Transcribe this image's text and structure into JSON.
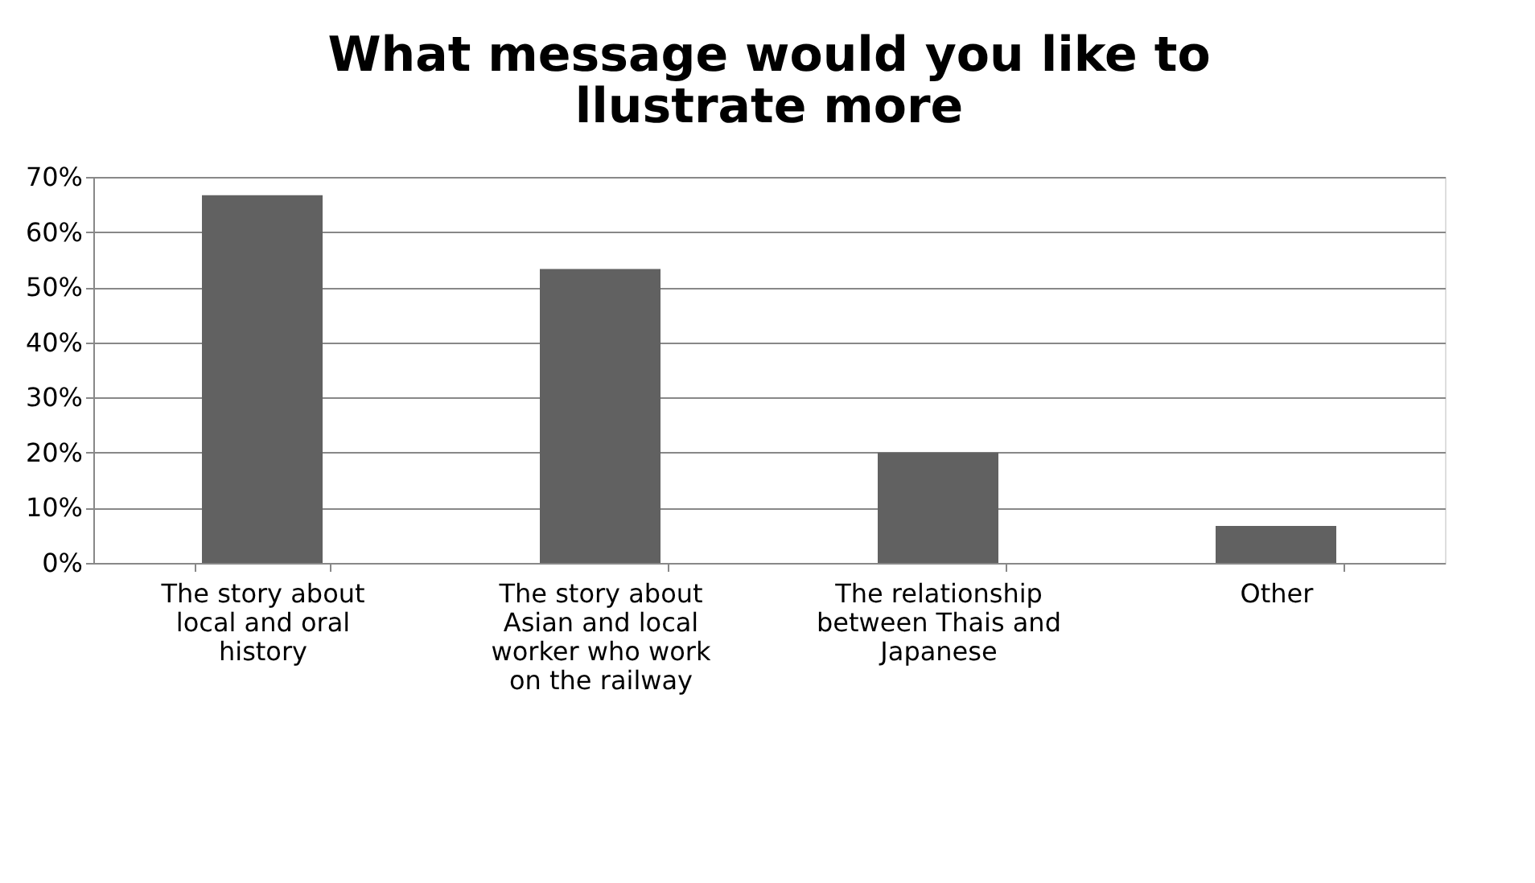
{
  "chart_data": {
    "type": "bar",
    "title": "What message would you like to llustrate more",
    "categories": [
      "The story about local and oral history",
      "The story about Asian and local worker who work on the railway",
      "The relationship between Thais and Japanese",
      "Other"
    ],
    "values": [
      66.7,
      53.3,
      20,
      6.7
    ],
    "color": "#616161",
    "ylim": [
      0,
      70
    ],
    "yticks": [
      {
        "value": 0,
        "label": "0%"
      },
      {
        "value": 10,
        "label": "10%"
      },
      {
        "value": 20,
        "label": "20%"
      },
      {
        "value": 30,
        "label": "30%"
      },
      {
        "value": 40,
        "label": "40%"
      },
      {
        "value": 50,
        "label": "50%"
      },
      {
        "value": 60,
        "label": "60%"
      },
      {
        "value": 70,
        "label": "70%"
      }
    ],
    "grid": "y"
  }
}
